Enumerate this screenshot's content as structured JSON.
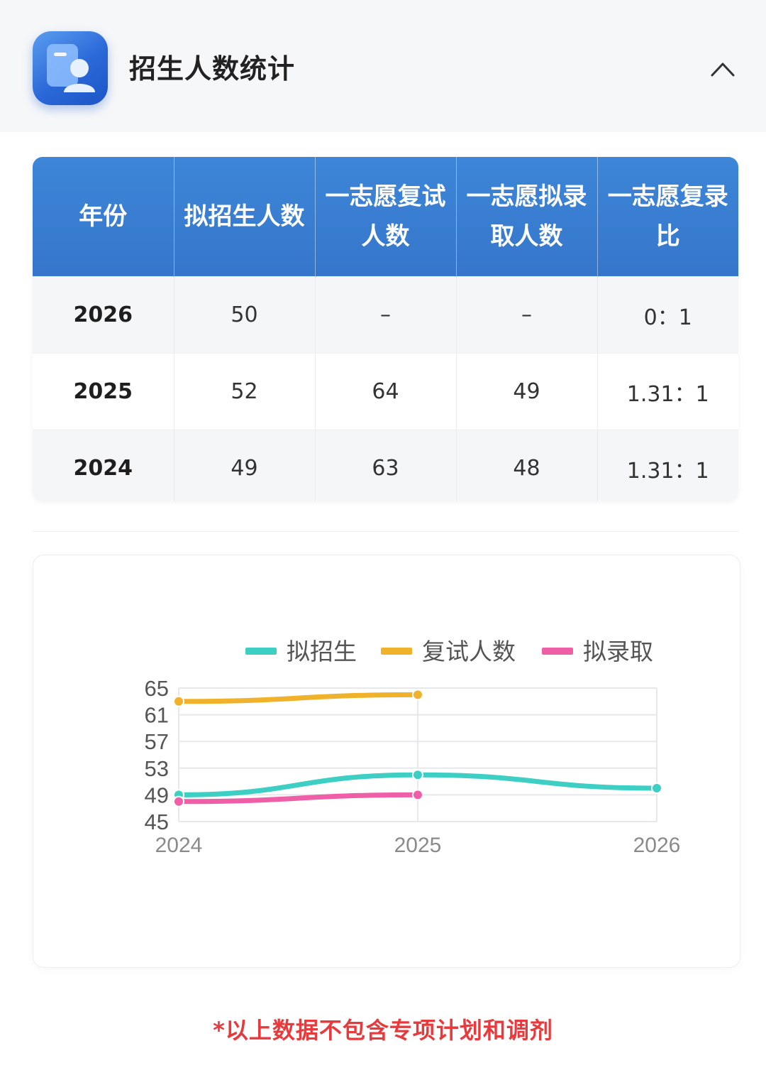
{
  "header": {
    "title": "招生人数统计",
    "icon": "profile-card-icon",
    "collapse_icon": "chevron-up-icon"
  },
  "table": {
    "columns": [
      "年份",
      "拟招生人数",
      "一志愿复试人数",
      "一志愿拟录取人数",
      "一志愿复录比"
    ],
    "rows": [
      [
        "2026",
        "50",
        "–",
        "–",
        "0：1"
      ],
      [
        "2025",
        "52",
        "64",
        "49",
        "1.31：1"
      ],
      [
        "2024",
        "49",
        "63",
        "48",
        "1.31：1"
      ]
    ]
  },
  "chart_data": {
    "type": "line",
    "categories": [
      "2024",
      "2025",
      "2026"
    ],
    "yticks": [
      "65",
      "61",
      "57",
      "53",
      "49",
      "45"
    ],
    "ylim": [
      45,
      65
    ],
    "legend_position": "top",
    "series": [
      {
        "name": "拟招生",
        "color": "#3ecfc4",
        "values": [
          49,
          52,
          50
        ]
      },
      {
        "name": "复试人数",
        "color": "#f0b22a",
        "values": [
          63,
          64,
          null
        ]
      },
      {
        "name": "拟录取",
        "color": "#ef5fa7",
        "values": [
          48,
          49,
          null
        ]
      }
    ]
  },
  "footnote": "*以上数据不包含专项计划和调剂"
}
